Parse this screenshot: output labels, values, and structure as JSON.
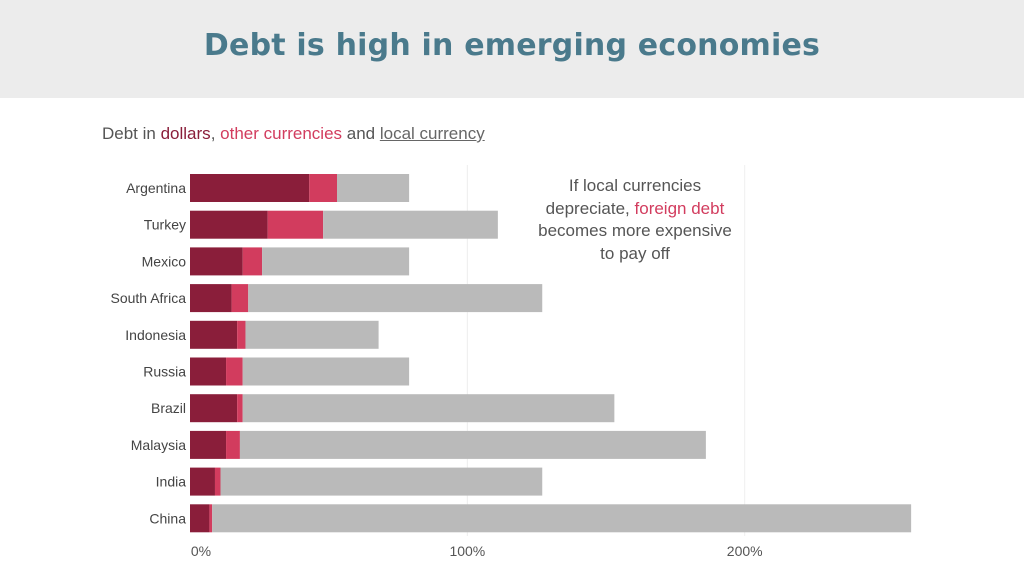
{
  "header": {
    "title": "Debt is high in emerging economies"
  },
  "subtitle": {
    "prefix": "Debt in ",
    "dollars": "dollars",
    "sep1": ", ",
    "other": "other currencies",
    "sep2": " and ",
    "local": "local currency"
  },
  "annotation": {
    "line1": "If local currencies",
    "line2_prefix": "depreciate, ",
    "line2_highlight": "foreign debt",
    "line3": "becomes more expensive",
    "line4": "to pay off"
  },
  "colors": {
    "dollars": "#8a1e3a",
    "other": "#d23c5e",
    "local": "#bababa",
    "title": "#4a7a8c",
    "header_bg": "#ececec"
  },
  "chart_data": {
    "type": "bar",
    "orientation": "horizontal",
    "stacked": true,
    "categories": [
      "Argentina",
      "Turkey",
      "Mexico",
      "South Africa",
      "Indonesia",
      "Russia",
      "Brazil",
      "Malaysia",
      "India",
      "China"
    ],
    "series": [
      {
        "name": "dollars",
        "color": "#8a1e3a",
        "values": [
          43,
          28,
          19,
          15,
          17,
          13,
          17,
          13,
          9,
          7
        ]
      },
      {
        "name": "other currencies",
        "color": "#d23c5e",
        "values": [
          10,
          20,
          7,
          6,
          3,
          6,
          2,
          5,
          2,
          1
        ]
      },
      {
        "name": "local currency",
        "color": "#bababa",
        "values": [
          26,
          63,
          53,
          106,
          48,
          60,
          134,
          168,
          116,
          252
        ]
      }
    ],
    "x_ticks": [
      "0%",
      "100%",
      "200%"
    ],
    "x_tick_values": [
      0,
      100,
      200
    ],
    "xlim": [
      0,
      265
    ],
    "grid": true
  }
}
